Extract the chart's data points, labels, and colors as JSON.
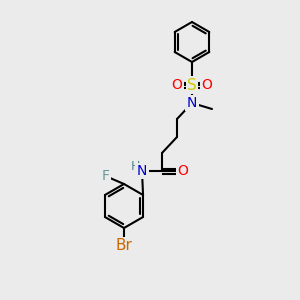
{
  "bg_color": "#ebebeb",
  "bond_color": "#000000",
  "bond_width": 1.5,
  "atom_colors": {
    "N_amide": "#0000cc",
    "N_sulfonyl": "#0000cc",
    "O": "#ff0000",
    "S": "#cccc00",
    "F": "#669999",
    "Br": "#cc6600",
    "H": "#558888"
  },
  "font_size": 10
}
